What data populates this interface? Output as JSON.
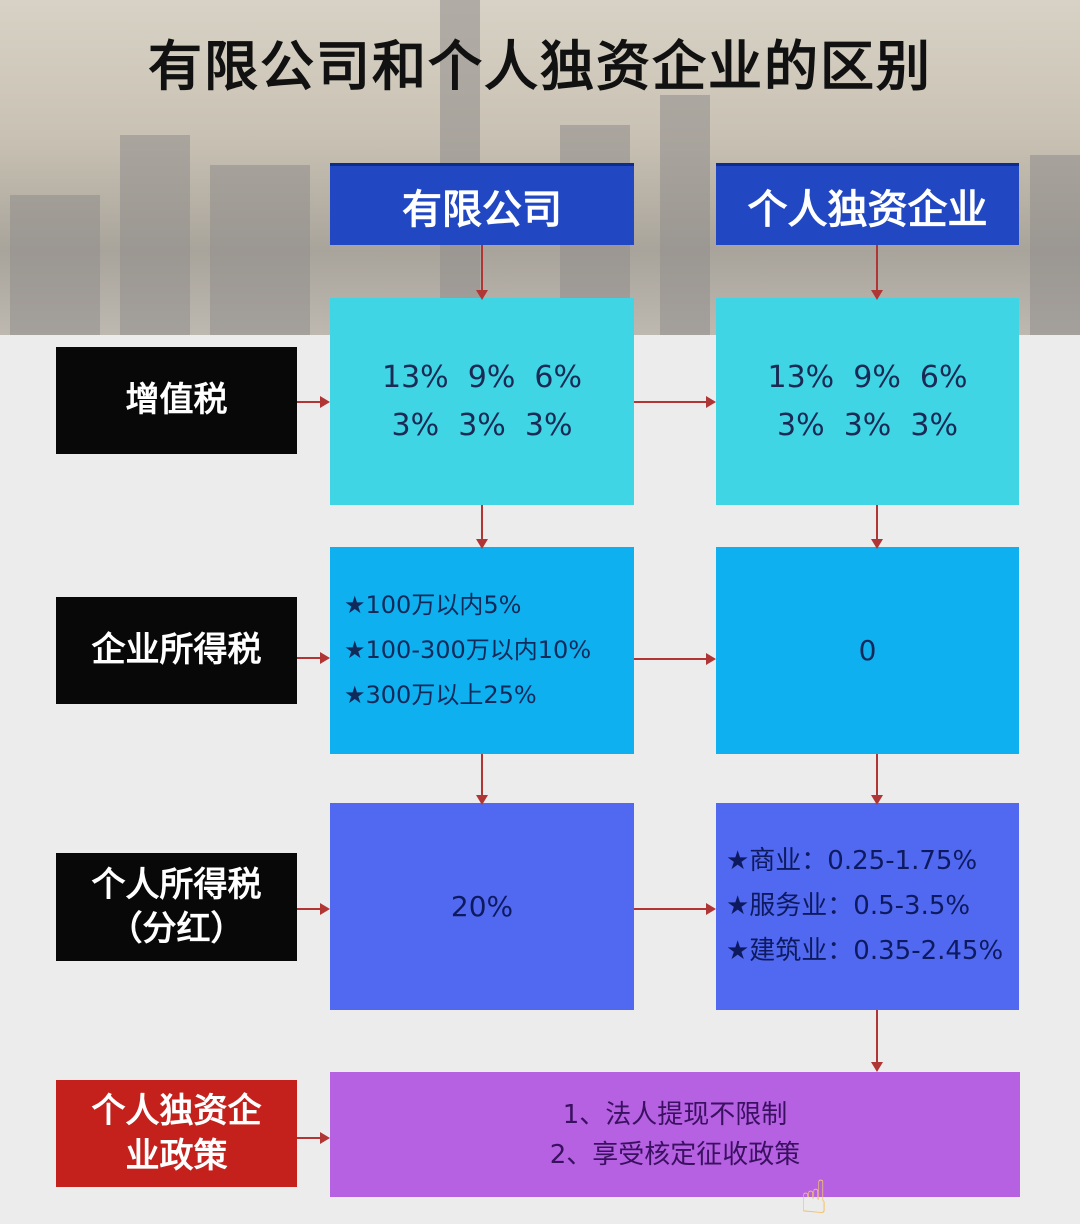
{
  "title": "有限公司和个人独资企业的区别",
  "columns": [
    "有限公司",
    "个人独资企业"
  ],
  "rows": [
    {
      "label": "增值税",
      "llc": [
        "13%  9%  6%",
        "3%  3%  3%"
      ],
      "sole": [
        "13%  9%  6%",
        "3%  3%  3%"
      ]
    },
    {
      "label": "企业所得税",
      "llc": [
        "★100万以内5%",
        "★100-300万以内10%",
        "★300万以上25%"
      ],
      "sole": [
        "0"
      ]
    },
    {
      "label_lines": [
        "个人所得税",
        "（分红）"
      ],
      "llc": [
        "20%"
      ],
      "sole": [
        "★商业：0.25-1.75%",
        "★服务业：0.5-3.5%",
        "★建筑业：0.35-2.45%"
      ]
    }
  ],
  "policy": {
    "label": "个人独资企业政策",
    "items": [
      "1、法人提现不限制",
      "2、享受核定征收政策"
    ]
  },
  "colors": {
    "header": "#2148c2",
    "row1": "#3fd5e4",
    "row2": "#0eb0ef",
    "row3": "#5169f0",
    "policy": "#b660e2",
    "label": "#080808",
    "policy_label": "#c4201c",
    "arrow": "#b03535"
  }
}
